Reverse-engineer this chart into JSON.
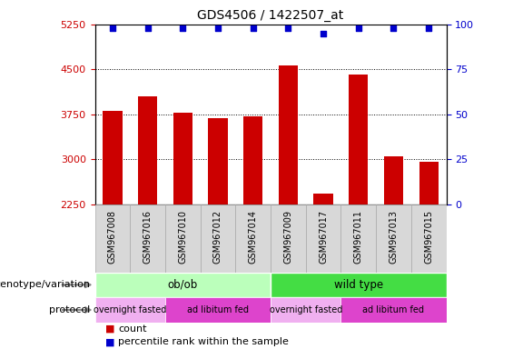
{
  "title": "GDS4506 / 1422507_at",
  "samples": [
    "GSM967008",
    "GSM967016",
    "GSM967010",
    "GSM967012",
    "GSM967014",
    "GSM967009",
    "GSM967017",
    "GSM967011",
    "GSM967013",
    "GSM967015"
  ],
  "counts": [
    3800,
    4050,
    3780,
    3680,
    3720,
    4570,
    2430,
    4420,
    3050,
    2960
  ],
  "percentile_ranks": [
    98,
    98,
    98,
    98,
    98,
    98,
    95,
    98,
    98,
    98
  ],
  "ylim_left": [
    2250,
    5250
  ],
  "ylim_right": [
    0,
    100
  ],
  "yticks_left": [
    2250,
    3000,
    3750,
    4500,
    5250
  ],
  "yticks_right": [
    0,
    25,
    50,
    75,
    100
  ],
  "bar_color": "#cc0000",
  "scatter_color": "#0000cc",
  "genotype_groups": [
    {
      "label": "ob/ob",
      "start": 0,
      "end": 5,
      "color": "#bbffbb"
    },
    {
      "label": "wild type",
      "start": 5,
      "end": 10,
      "color": "#44dd44"
    }
  ],
  "protocol_groups": [
    {
      "label": "overnight fasted",
      "start": 0,
      "end": 2,
      "color": "#f0b0f0"
    },
    {
      "label": "ad libitum fed",
      "start": 2,
      "end": 5,
      "color": "#dd44cc"
    },
    {
      "label": "overnight fasted",
      "start": 5,
      "end": 7,
      "color": "#f0b0f0"
    },
    {
      "label": "ad libitum fed",
      "start": 7,
      "end": 10,
      "color": "#dd44cc"
    }
  ],
  "genotype_label": "genotype/variation",
  "protocol_label": "protocol",
  "legend_count_color": "#cc0000",
  "legend_rank_color": "#0000cc",
  "legend_count_text": "count",
  "legend_rank_text": "percentile rank within the sample",
  "bar_width": 0.55,
  "dotted_grid": [
    3000,
    3750,
    4500
  ],
  "tick_color_left": "#cc0000",
  "tick_color_right": "#0000cc",
  "xtick_bg_color": "#d8d8d8",
  "xtick_sep_color": "#aaaaaa"
}
